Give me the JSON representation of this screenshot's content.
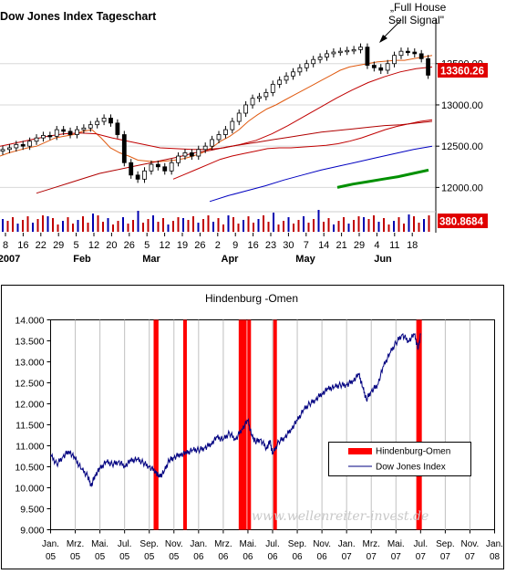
{
  "chart_data": [
    {
      "type": "line",
      "title": "Dow Jones Index Tageschart",
      "annotation": "„Full House Sell Signal\"",
      "ylim": [
        11750,
        14050
      ],
      "y_ticks": [
        "13500.00",
        "13000.00",
        "12500.00",
        "12000.00"
      ],
      "last_price_label": "13360.26",
      "volume_label": "380.8684",
      "x_tick_labels": [
        "8",
        "16",
        "22",
        "29",
        "5",
        "12",
        "20",
        "26",
        "5",
        "12",
        "19",
        "26",
        "2",
        "9",
        "16",
        "23",
        "30",
        "7",
        "14",
        "21",
        "29",
        "4",
        "11",
        "18"
      ],
      "x_period_labels": [
        "2007",
        "Feb",
        "Mar",
        "Apr",
        "May",
        "Jun"
      ],
      "series": [
        {
          "values": [
            12460,
            12480,
            12520,
            12500,
            12560,
            12600,
            12630,
            12620,
            12700,
            12680,
            12640,
            12700,
            12720,
            12760,
            12800,
            12840,
            12780,
            12640,
            12300,
            12150,
            12100,
            12200,
            12280,
            12250,
            12200,
            12300,
            12380,
            12420,
            12380,
            12460,
            12500,
            12580,
            12640,
            12700,
            12800,
            12900,
            13000,
            13080,
            13100,
            13150,
            13250,
            13300,
            13350,
            13400,
            13450,
            13500,
            13550,
            13580,
            13620,
            13640,
            13650,
            13660,
            13670,
            13700,
            13480,
            13450,
            13420,
            13500,
            13600,
            13650,
            13640,
            13620,
            13560,
            13360
          ]
        },
        {
          "values": [
            12380,
            12420,
            12450,
            12480,
            12500,
            12550,
            12600,
            12620,
            12640,
            12680,
            12700,
            12600,
            12480,
            12420,
            12380,
            12330,
            12320,
            12310,
            12320,
            12330,
            12350,
            12380,
            12420,
            12480,
            12560,
            12620,
            12700,
            12800,
            12880,
            12950,
            13000,
            13060,
            13120,
            13180,
            13240,
            13300,
            13360,
            13420,
            13460,
            13480,
            13500,
            13520,
            13530,
            13540,
            13540,
            13560,
            13580,
            13600
          ]
        },
        {
          "values": [
            12500,
            12540,
            12580,
            12620,
            12650,
            12660,
            12650,
            12600,
            12560,
            12520,
            12480,
            12470,
            12460,
            12460,
            12480,
            12520,
            12570,
            12650,
            12750,
            12860,
            12970,
            13080,
            13180,
            13270,
            13340,
            13400,
            13440,
            13460
          ]
        },
        {
          "values": [
            12100,
            12160,
            12220,
            12280,
            12340,
            12380,
            12410,
            12440,
            12470,
            12480,
            12480,
            12490,
            12500,
            12510,
            12530,
            12560,
            12600,
            12650,
            12700,
            12740,
            12770,
            12800,
            12820
          ]
        },
        {
          "values": [
            11930,
            11990,
            12050,
            12110,
            12170,
            12210,
            12250,
            12290,
            12330,
            12370,
            12420,
            12450,
            12490,
            12520,
            12550,
            12580,
            12610,
            12640,
            12670,
            12690,
            12710,
            12730,
            12750,
            12760,
            12780,
            12800
          ]
        },
        {
          "values": [
            11830,
            11900,
            11960,
            12020,
            12090,
            12150,
            12210,
            12260,
            12310,
            12360,
            12410,
            12460,
            12500
          ]
        },
        {
          "values": [
            12000,
            12040,
            12070,
            12100,
            12130,
            12170,
            12210
          ]
        }
      ]
    },
    {
      "type": "line",
      "title": "Hindenburg -Omen",
      "ylim": [
        9000,
        14000
      ],
      "y_ticks": [
        "14.000",
        "13.500",
        "13.000",
        "12.500",
        "12.000",
        "11.500",
        "11.000",
        "10.500",
        "10.000",
        "9.500",
        "9.000"
      ],
      "x_labels_top": [
        "Jan.",
        "Mrz.",
        "Mai.",
        "Jul.",
        "Sep.",
        "Nov.",
        "Jan.",
        "Mrz.",
        "Mai.",
        "Jul.",
        "Sep.",
        "Nov.",
        "Jan.",
        "Mrz.",
        "Mai.",
        "Jul.",
        "Sep.",
        "Nov.",
        "Jan."
      ],
      "x_labels_bottom": [
        "05",
        "05",
        "05",
        "05",
        "05",
        "05",
        "06",
        "06",
        "06",
        "06",
        "06",
        "06",
        "07",
        "07",
        "07",
        "07",
        "07",
        "07",
        "08"
      ],
      "legend": [
        "Hindenburg-Omen",
        "Dow Jones Index"
      ],
      "watermark": "www.wellenreiter-invest.de",
      "hindenburg_omen_months": [
        8.5,
        8.6,
        10.9,
        15.4,
        15.6,
        15.75,
        16.1,
        18.2,
        29.8,
        29.95
      ],
      "series": [
        {
          "name": "Dow Jones Index",
          "x_months": [
            0,
            0.5,
            1,
            1.5,
            2,
            2.5,
            3,
            3.3,
            3.6,
            4,
            4.5,
            5,
            5.5,
            6,
            6.5,
            7,
            7.5,
            8,
            8.5,
            8.8,
            9.2,
            9.6,
            10,
            10.5,
            11,
            11.5,
            12,
            12.5,
            13,
            13.5,
            14,
            14.5,
            15,
            15.5,
            16,
            16.3,
            16.6,
            17,
            17.5,
            17.8,
            18,
            18.5,
            19,
            19.5,
            20,
            20.5,
            21,
            21.5,
            22,
            22.5,
            23,
            23.5,
            24,
            24.5,
            25,
            25.3,
            25.6,
            26,
            26.5,
            27,
            27.5,
            28,
            28.5,
            29,
            29.5,
            29.8,
            30
          ],
          "values": [
            10780,
            10560,
            10740,
            10880,
            10680,
            10450,
            10280,
            10050,
            10300,
            10450,
            10620,
            10560,
            10620,
            10520,
            10640,
            10680,
            10600,
            10500,
            10400,
            10250,
            10380,
            10650,
            10720,
            10800,
            10820,
            10900,
            10900,
            10950,
            11050,
            11200,
            11150,
            11300,
            11150,
            11400,
            11600,
            11250,
            11100,
            11150,
            10950,
            11100,
            10800,
            11100,
            11200,
            11400,
            11600,
            11850,
            12000,
            12100,
            12250,
            12350,
            12400,
            12450,
            12450,
            12550,
            12700,
            12400,
            12100,
            12300,
            12450,
            12900,
            13200,
            13450,
            13650,
            13500,
            13650,
            13300,
            13650
          ]
        }
      ]
    }
  ]
}
